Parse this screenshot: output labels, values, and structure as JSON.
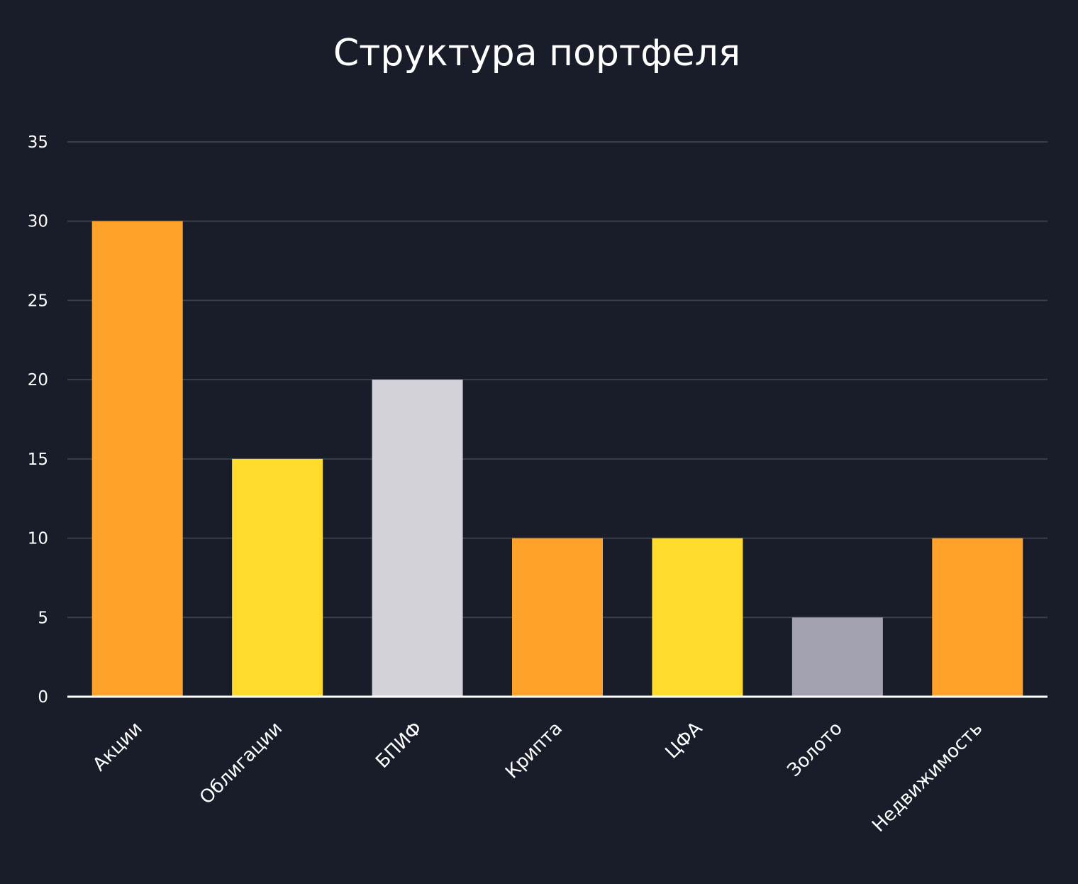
{
  "chart_data": {
    "type": "bar",
    "title": "Структура портфеля",
    "xlabel": "",
    "ylabel": "",
    "categories": [
      "Акции",
      "Облигации",
      "БПИФ",
      "Крипта",
      "ЦФА",
      "Золото",
      "Недвижимость"
    ],
    "values": [
      30,
      15,
      20,
      10,
      10,
      5,
      10
    ],
    "colors": [
      "#ffa22c",
      "#ffdb2c",
      "#d3d2d8",
      "#ffa22c",
      "#ffdb2c",
      "#a3a2b1",
      "#ffa22c"
    ],
    "ylim": [
      0,
      35
    ],
    "yticks": [
      0,
      5,
      10,
      15,
      20,
      25,
      30,
      35
    ],
    "grid": true,
    "legend": "none",
    "background": "#181d29",
    "grid_color": "#3a3e4b",
    "axis_color": "#ffffff"
  }
}
